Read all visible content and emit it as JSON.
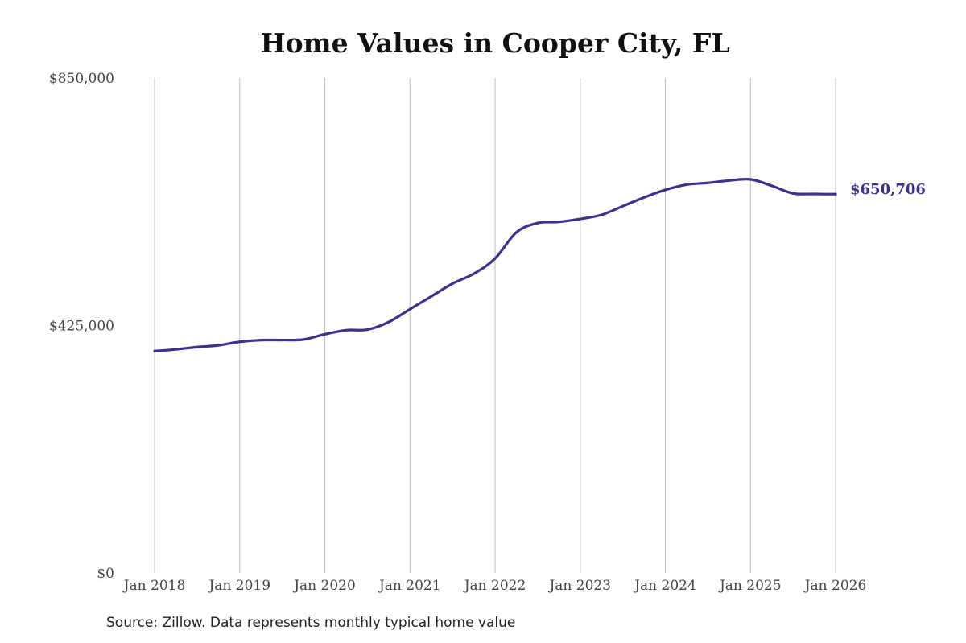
{
  "chart_data": {
    "type": "line",
    "title": "Home Values in Cooper City, FL",
    "source": "Source: Zillow. Data represents monthly typical home value",
    "xlabel": "",
    "ylabel": "",
    "ylim": [
      0,
      850000
    ],
    "y_ticks": [
      0,
      425000,
      850000
    ],
    "y_tick_labels": [
      "$0",
      "$425,000",
      "$850,000"
    ],
    "x_ticks": [
      "2018-01",
      "2019-01",
      "2020-01",
      "2021-01",
      "2022-01",
      "2023-01",
      "2024-01",
      "2025-01",
      "2026-01"
    ],
    "x_tick_labels": [
      "Jan 2018",
      "Jan 2019",
      "Jan 2020",
      "Jan 2021",
      "Jan 2022",
      "Jan 2023",
      "Jan 2024",
      "Jan 2025",
      "Jan 2026"
    ],
    "grid": "vertical",
    "line_color": "#3b3190",
    "end_label": "$650,706",
    "series": [
      {
        "x": [
          "2018-01",
          "2018-04",
          "2018-07",
          "2018-10",
          "2019-01",
          "2019-04",
          "2019-07",
          "2019-10",
          "2020-01",
          "2020-04",
          "2020-07",
          "2020-10",
          "2021-01",
          "2021-04",
          "2021-07",
          "2021-10",
          "2022-01",
          "2022-04",
          "2022-07",
          "2022-10",
          "2023-01",
          "2023-04",
          "2023-07",
          "2023-10",
          "2024-01",
          "2024-04",
          "2024-07",
          "2024-10",
          "2025-01",
          "2025-04",
          "2025-07",
          "2025-10",
          "2026-01"
        ],
        "y": [
          381000,
          384000,
          388000,
          391000,
          397000,
          400000,
          400000,
          401000,
          410000,
          417000,
          418000,
          431000,
          453000,
          475000,
          497000,
          514000,
          540000,
          585000,
          601000,
          603000,
          608000,
          615000,
          630000,
          645000,
          658000,
          667000,
          670000,
          674000,
          676000,
          665000,
          652000,
          651000,
          650706
        ]
      }
    ]
  }
}
